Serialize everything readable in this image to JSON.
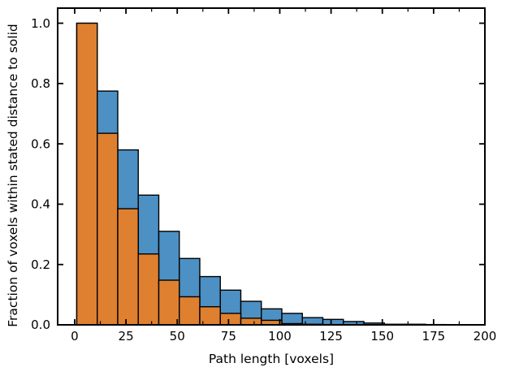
{
  "figure": {
    "background": "#ffffff",
    "text_color": "#000000"
  },
  "chart_data": {
    "type": "bar",
    "subtype": "overlaid-survival-histogram",
    "title": "",
    "xlabel": "Path length [voxels]",
    "ylabel": "Fraction of voxels within stated distance to solid",
    "xlim": [
      -8.3,
      200
    ],
    "ylim": [
      0,
      1.05
    ],
    "grid": false,
    "legend": false,
    "edge_color": "#000000",
    "x_tick_values": [
      0,
      25,
      50,
      75,
      100,
      125,
      150,
      175,
      200
    ],
    "x_tick_labels": [
      "0",
      "25",
      "50",
      "75",
      "100",
      "125",
      "150",
      "175",
      "200"
    ],
    "x_minor_tick_values": [
      12.5,
      37.5,
      62.5,
      87.5,
      112.5,
      137.5,
      162.5,
      187.5
    ],
    "y_tick_values": [
      0.0,
      0.2,
      0.4,
      0.6,
      0.8,
      1.0
    ],
    "y_tick_labels": [
      "0.0",
      "0.2",
      "0.4",
      "0.6",
      "0.8",
      "1.0"
    ],
    "bin_width": 10,
    "bin_starts": [
      1,
      11,
      21,
      31,
      41,
      51,
      61,
      71,
      81,
      91,
      101,
      111,
      121,
      131,
      141,
      151,
      161,
      171
    ],
    "series": [
      {
        "name": "blue-histogram",
        "color": "#4C90C4",
        "values": [
          1.0,
          0.775,
          0.58,
          0.43,
          0.31,
          0.22,
          0.16,
          0.115,
          0.078,
          0.053,
          0.038,
          0.024,
          0.018,
          0.011,
          0.006,
          0.002,
          0.002,
          0.001
        ]
      },
      {
        "name": "orange-histogram",
        "color": "#DE8030",
        "values": [
          1.0,
          0.635,
          0.385,
          0.235,
          0.148,
          0.093,
          0.06,
          0.038,
          0.022,
          0.015,
          0.004,
          0.002,
          0.001,
          0.001,
          0,
          0,
          0,
          0
        ]
      }
    ]
  }
}
